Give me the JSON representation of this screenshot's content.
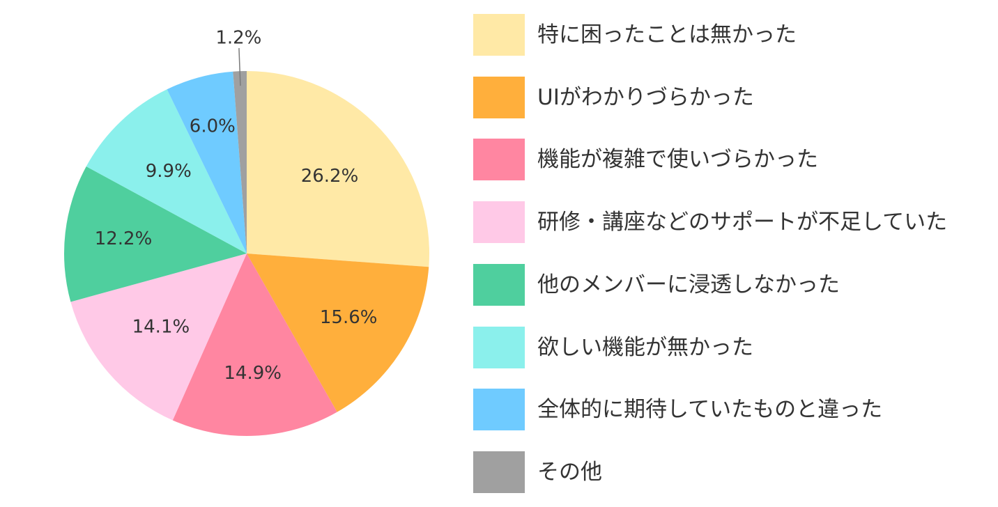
{
  "chart_data": {
    "type": "pie",
    "title": "",
    "start_angle_deg": 0,
    "direction": "clockwise",
    "legend_position": "right",
    "series": [
      {
        "name": "特に困ったことは無かった",
        "value": 26.2,
        "label": "26.2%",
        "color": "#FFE9A6"
      },
      {
        "name": "UIがわかりづらかった",
        "value": 15.6,
        "label": "15.6%",
        "color": "#FFAF3C"
      },
      {
        "name": "機能が複雑で使いづらかった",
        "value": 14.9,
        "label": "14.9%",
        "color": "#FF86A1"
      },
      {
        "name": "研修・講座などのサポートが不足していた",
        "value": 14.1,
        "label": "14.1%",
        "color": "#FFC9E7"
      },
      {
        "name": "他のメンバーに浸透しなかった",
        "value": 12.2,
        "label": "12.2%",
        "color": "#4FCF9E"
      },
      {
        "name": "欲しい機能が無かった",
        "value": 9.9,
        "label": "9.9%",
        "color": "#8BF0EC"
      },
      {
        "name": "全体的に期待していたものと違った",
        "value": 6.0,
        "label": "6.0%",
        "color": "#6FCBFF"
      },
      {
        "name": "その他",
        "value": 1.2,
        "label": "1.2%",
        "color": "#A0A0A0"
      }
    ]
  }
}
